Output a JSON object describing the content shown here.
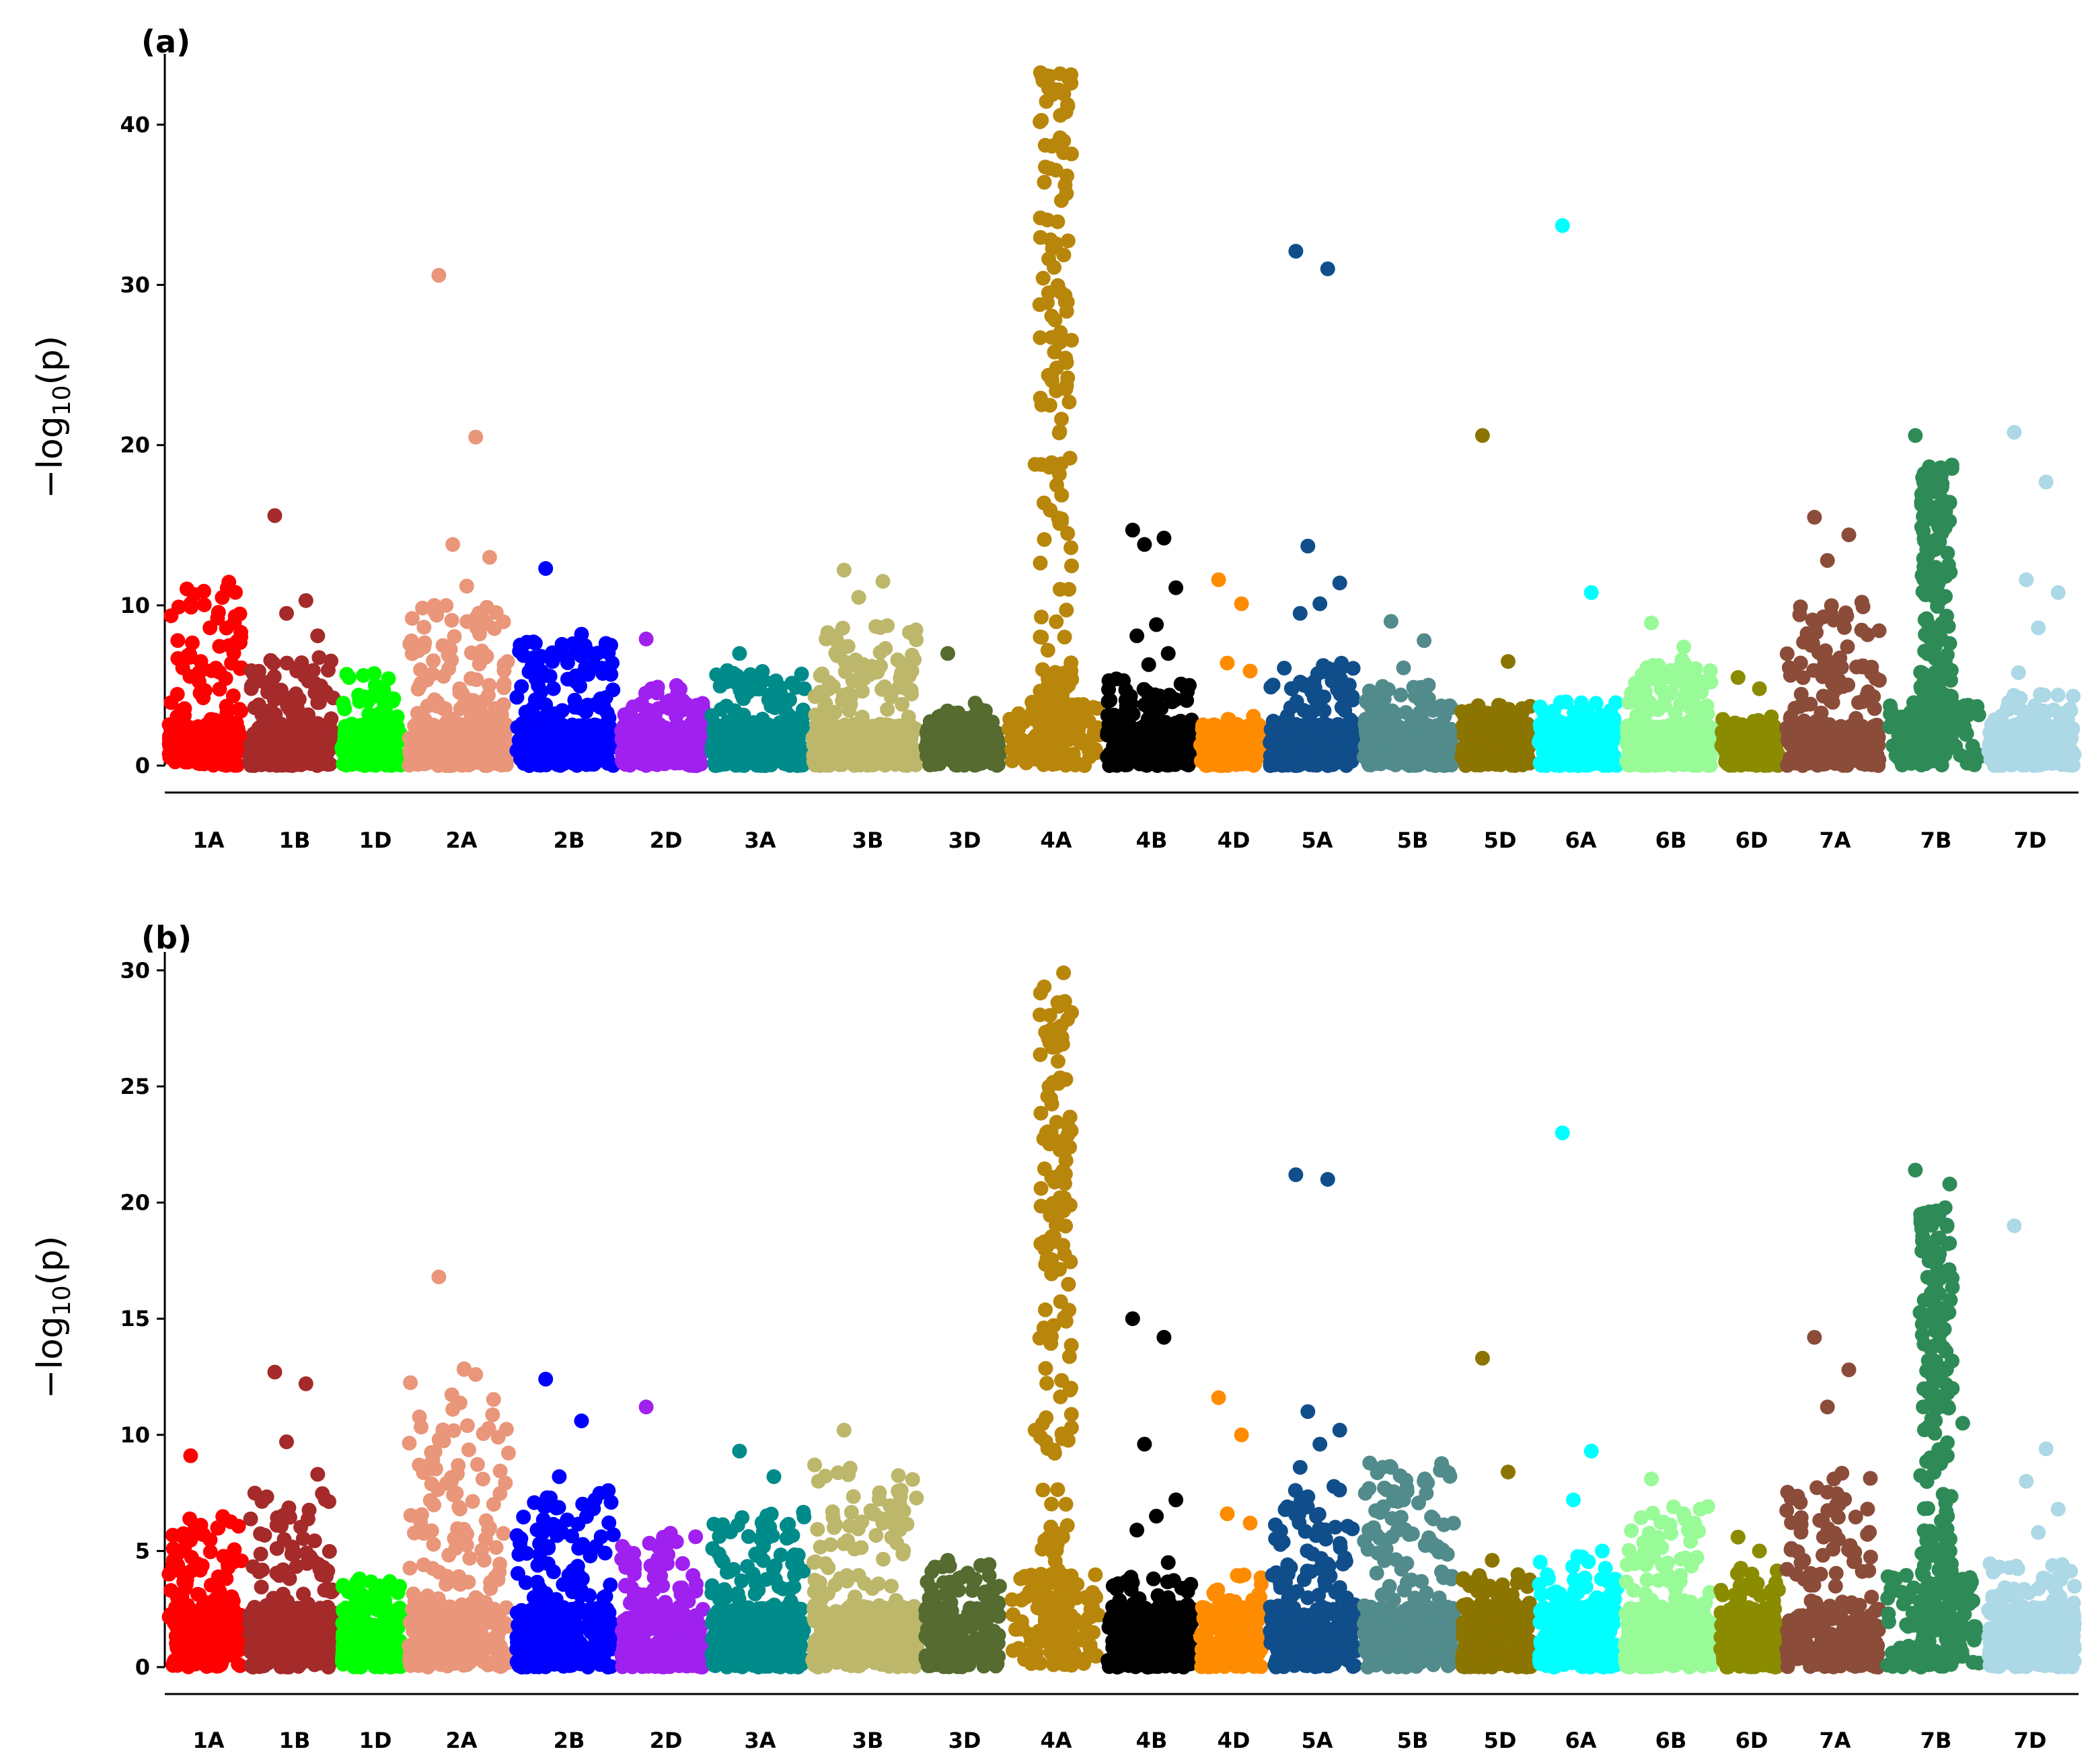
{
  "chart_data": [
    {
      "type": "scatter",
      "subtype": "manhattan",
      "panel_label": "(a)",
      "ylabel_main": "−log",
      "ylabel_sub": "10",
      "ylabel_arg": "(p)",
      "ylim": [
        0,
        44
      ],
      "yticks": [
        0,
        10,
        20,
        30,
        40
      ],
      "chromosomes": [
        {
          "name": "1A",
          "color": "#FF0000",
          "base_max": 11.5,
          "hits": [
            10.1,
            9.2,
            6.5
          ]
        },
        {
          "name": "1B",
          "color": "#A52A2A",
          "base_max": 6.8,
          "hits": [
            15.6,
            10.3,
            9.5,
            8.1,
            6.0
          ]
        },
        {
          "name": "1D",
          "color": "#00FF00",
          "base_max": 5.8,
          "hits": [
            4.0
          ]
        },
        {
          "name": "2A",
          "color": "#E9967A",
          "base_max": 10.0,
          "hits": [
            30.6,
            20.5,
            13.8,
            13.0,
            11.2
          ]
        },
        {
          "name": "2B",
          "color": "#0000FF",
          "base_max": 8.0,
          "hits": [
            12.3,
            8.2,
            7.0,
            6.2
          ]
        },
        {
          "name": "2D",
          "color": "#A020F0",
          "base_max": 4.8,
          "hits": [
            7.9,
            5.0,
            4.9
          ]
        },
        {
          "name": "3A",
          "color": "#008B8B",
          "base_max": 6.0,
          "hits": [
            7.0,
            5.2
          ]
        },
        {
          "name": "3B",
          "color": "#BDB76B",
          "base_max": 8.8,
          "hits": [
            12.2,
            11.5,
            10.5,
            6.6
          ]
        },
        {
          "name": "3D",
          "color": "#556B2F",
          "base_max": 3.5,
          "hits": [
            7.0,
            3.9
          ]
        },
        {
          "name": "4A",
          "color": "#B8860B",
          "base_max": 43.5,
          "hits": [
            18.8,
            11.0,
            7.2
          ]
        },
        {
          "name": "4B",
          "color": "#000000",
          "base_max": 5.5,
          "hits": [
            14.7,
            14.2,
            13.8,
            11.1,
            8.8,
            8.1,
            7.0,
            6.3
          ]
        },
        {
          "name": "4D",
          "color": "#FF8C00",
          "base_max": 3.2,
          "hits": [
            11.6,
            10.1,
            6.4,
            5.9
          ]
        },
        {
          "name": "5A",
          "color": "#104E8B",
          "base_max": 6.5,
          "hits": [
            32.1,
            31.0,
            13.7,
            11.4,
            10.1,
            9.5
          ]
        },
        {
          "name": "5B",
          "color": "#528B8B",
          "base_max": 5.2,
          "hits": [
            9.0,
            7.8,
            6.1
          ]
        },
        {
          "name": "5D",
          "color": "#8B7500",
          "base_max": 3.8,
          "hits": [
            20.6,
            6.5
          ]
        },
        {
          "name": "6A",
          "color": "#00FFFF",
          "base_max": 4.0,
          "hits": [
            33.7,
            10.8
          ]
        },
        {
          "name": "6B",
          "color": "#98FB98",
          "base_max": 6.7,
          "hits": [
            8.9,
            7.4
          ]
        },
        {
          "name": "6D",
          "color": "#8B8B00",
          "base_max": 3.2,
          "hits": [
            5.5,
            4.8
          ]
        },
        {
          "name": "7A",
          "color": "#8B4C39",
          "base_max": 10.0,
          "hits": [
            15.5,
            14.4,
            12.8,
            10.2
          ]
        },
        {
          "name": "7B",
          "color": "#2E8B57",
          "base_max": 18.8,
          "hits": [
            20.6,
            16.4
          ]
        },
        {
          "name": "7D",
          "color": "#ADD8E6",
          "base_max": 4.5,
          "hits": [
            20.8,
            17.7,
            11.6,
            10.8,
            8.6,
            5.8
          ]
        }
      ]
    },
    {
      "type": "scatter",
      "subtype": "manhattan",
      "panel_label": "(b)",
      "ylabel_main": "−log",
      "ylabel_sub": "10",
      "ylabel_arg": "(p)",
      "ylim": [
        0,
        30.5
      ],
      "yticks": [
        0,
        5,
        10,
        15,
        20,
        25,
        30
      ],
      "chromosomes": [
        {
          "name": "1A",
          "color": "#FF0000",
          "base_max": 6.5,
          "hits": [
            9.1,
            6.0
          ]
        },
        {
          "name": "1B",
          "color": "#A52A2A",
          "base_max": 7.5,
          "hits": [
            12.7,
            12.2,
            9.7,
            8.3
          ]
        },
        {
          "name": "1D",
          "color": "#00FF00",
          "base_max": 3.7,
          "hits": [
            3.8
          ]
        },
        {
          "name": "2A",
          "color": "#E9967A",
          "base_max": 13.0,
          "hits": [
            16.8,
            12.6,
            11.1,
            6.0
          ]
        },
        {
          "name": "2B",
          "color": "#0000FF",
          "base_max": 7.7,
          "hits": [
            12.4,
            10.6,
            8.2,
            7.2
          ]
        },
        {
          "name": "2D",
          "color": "#A020F0",
          "base_max": 5.8,
          "hits": [
            11.2,
            5.4
          ]
        },
        {
          "name": "3A",
          "color": "#008B8B",
          "base_max": 7.0,
          "hits": [
            9.3,
            8.2
          ]
        },
        {
          "name": "3B",
          "color": "#BDB76B",
          "base_max": 8.8,
          "hits": [
            10.2,
            6.2
          ]
        },
        {
          "name": "3D",
          "color": "#556B2F",
          "base_max": 4.5,
          "hits": [
            4.6
          ]
        },
        {
          "name": "4A",
          "color": "#B8860B",
          "base_max": 29.9,
          "hits": [
            10.2
          ]
        },
        {
          "name": "4B",
          "color": "#000000",
          "base_max": 4.0,
          "hits": [
            15.0,
            14.2,
            9.6,
            7.2,
            6.5,
            5.9,
            4.5
          ]
        },
        {
          "name": "4D",
          "color": "#FF8C00",
          "base_max": 4.0,
          "hits": [
            11.6,
            10.0,
            6.6,
            6.2
          ]
        },
        {
          "name": "5A",
          "color": "#104E8B",
          "base_max": 7.8,
          "hits": [
            21.2,
            21.0,
            11.0,
            10.2,
            9.6,
            8.6
          ]
        },
        {
          "name": "5B",
          "color": "#528B8B",
          "base_max": 8.8,
          "hits": [
            8.6,
            8.0,
            7.2
          ]
        },
        {
          "name": "5D",
          "color": "#8B7500",
          "base_max": 4.0,
          "hits": [
            13.3,
            8.4,
            4.6
          ]
        },
        {
          "name": "6A",
          "color": "#00FFFF",
          "base_max": 4.8,
          "hits": [
            23.0,
            9.3,
            7.2,
            5.0
          ]
        },
        {
          "name": "6B",
          "color": "#98FB98",
          "base_max": 7.0,
          "hits": [
            8.1,
            6.6
          ]
        },
        {
          "name": "6D",
          "color": "#8B8B00",
          "base_max": 4.5,
          "hits": [
            5.6,
            5.0
          ]
        },
        {
          "name": "7A",
          "color": "#8B4C39",
          "base_max": 8.4,
          "hits": [
            14.2,
            12.8,
            11.2
          ]
        },
        {
          "name": "7B",
          "color": "#2E8B57",
          "base_max": 20.0,
          "hits": [
            21.4,
            20.8,
            13.2,
            10.5,
            6.3
          ]
        },
        {
          "name": "7D",
          "color": "#ADD8E6",
          "base_max": 4.5,
          "hits": [
            19.0,
            9.4,
            8.0,
            6.8,
            5.8
          ]
        }
      ]
    }
  ]
}
